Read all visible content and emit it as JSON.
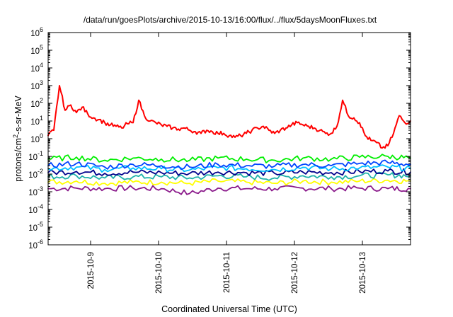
{
  "chart_data": {
    "type": "line",
    "title": "/data/run/goesPlots/archive/2015-10-13/16:00/flux/../flux/5daysMoonFluxes.txt",
    "xlabel": "Coordinated Universal Time (UTC)",
    "ylabel": "protons/cm²-s-sr-MeV",
    "ylabel_base": "protons/cm",
    "ylabel_sup": "2",
    "ylabel_rest": "-s-sr-MeV",
    "yscale": "log",
    "ylim": [
      1e-06,
      1000000.0
    ],
    "xlim": [
      "2015-10-08T09:00",
      "2015-10-13T17:00"
    ],
    "grid": false,
    "legend": "none",
    "x_ticks": [
      {
        "label": "2015-10-9",
        "at": "2015-10-09T00:00"
      },
      {
        "label": "2015-10-10",
        "at": "2015-10-10T00:00"
      },
      {
        "label": "2015-10-11",
        "at": "2015-10-11T00:00"
      },
      {
        "label": "2015-10-12",
        "at": "2015-10-12T00:00"
      },
      {
        "label": "2015-10-13",
        "at": "2015-10-13T00:00"
      }
    ],
    "y_ticks": [
      {
        "base": "10",
        "exp": "-6",
        "value": 1e-06
      },
      {
        "base": "10",
        "exp": "-5",
        "value": 1e-05
      },
      {
        "base": "10",
        "exp": "-4",
        "value": 0.0001
      },
      {
        "base": "10",
        "exp": "-3",
        "value": 0.001
      },
      {
        "base": "10",
        "exp": "-2",
        "value": 0.01
      },
      {
        "base": "10",
        "exp": "-1",
        "value": 0.1
      },
      {
        "base": "10",
        "exp": "0",
        "value": 1
      },
      {
        "base": "10",
        "exp": "1",
        "value": 10
      },
      {
        "base": "10",
        "exp": "2",
        "value": 100
      },
      {
        "base": "10",
        "exp": "3",
        "value": 1000
      },
      {
        "base": "10",
        "exp": "4",
        "value": 10000
      },
      {
        "base": "10",
        "exp": "5",
        "value": 100000
      },
      {
        "base": "10",
        "exp": "6",
        "value": 1000000
      }
    ],
    "series": [
      {
        "color": "#ff0000",
        "x": [
          "2015-10-08T09:00",
          "2015-10-08T11:00",
          "2015-10-08T13:00",
          "2015-10-08T15:00",
          "2015-10-08T17:00",
          "2015-10-08T19:00",
          "2015-10-08T21:00",
          "2015-10-08T23:00",
          "2015-10-09T01:00",
          "2015-10-09T03:00",
          "2015-10-09T05:00",
          "2015-10-09T07:00",
          "2015-10-09T09:00",
          "2015-10-09T11:00",
          "2015-10-09T13:00",
          "2015-10-09T15:00",
          "2015-10-09T17:00",
          "2015-10-09T19:00",
          "2015-10-09T21:00",
          "2015-10-09T23:00",
          "2015-10-10T01:00",
          "2015-10-10T03:00",
          "2015-10-10T05:00",
          "2015-10-10T07:00",
          "2015-10-10T09:00",
          "2015-10-10T11:00",
          "2015-10-10T13:00",
          "2015-10-10T15:00",
          "2015-10-10T17:00",
          "2015-10-10T19:00",
          "2015-10-10T21:00",
          "2015-10-10T23:00",
          "2015-10-11T01:00",
          "2015-10-11T03:00",
          "2015-10-11T05:00",
          "2015-10-11T07:00",
          "2015-10-11T09:00",
          "2015-10-11T11:00",
          "2015-10-11T13:00",
          "2015-10-11T15:00",
          "2015-10-11T17:00",
          "2015-10-11T19:00",
          "2015-10-11T21:00",
          "2015-10-11T23:00",
          "2015-10-12T01:00",
          "2015-10-12T03:00",
          "2015-10-12T05:00",
          "2015-10-12T07:00",
          "2015-10-12T09:00",
          "2015-10-12T11:00",
          "2015-10-12T13:00",
          "2015-10-12T15:00",
          "2015-10-12T17:00",
          "2015-10-12T19:00",
          "2015-10-12T21:00",
          "2015-10-12T23:00",
          "2015-10-13T01:00",
          "2015-10-13T03:00",
          "2015-10-13T05:00",
          "2015-10-13T07:00",
          "2015-10-13T09:00",
          "2015-10-13T11:00",
          "2015-10-13T13:00",
          "2015-10-13T15:00",
          "2015-10-13T17:00"
        ],
        "values": [
          1.5,
          3,
          1000,
          40,
          80,
          30,
          60,
          25,
          15,
          12,
          8,
          6,
          5,
          4,
          7,
          8,
          150,
          20,
          10,
          8,
          6,
          5,
          4,
          3.5,
          4,
          3,
          2.5,
          2,
          3,
          2.5,
          2,
          2,
          1.5,
          1.2,
          1.5,
          2,
          3,
          4,
          5,
          3,
          2,
          3,
          4,
          6,
          8,
          6,
          5,
          4,
          3,
          2,
          2,
          5,
          150,
          20,
          15,
          8,
          1.5,
          0.8,
          0.6,
          0.3,
          0.4,
          2,
          20,
          8,
          10
        ]
      },
      {
        "color": "#00ee00",
        "x": [
          "2015-10-08T09:00",
          "2015-10-08T19:00",
          "2015-10-09T05:00",
          "2015-10-09T15:00",
          "2015-10-10T01:00",
          "2015-10-10T11:00",
          "2015-10-10T21:00",
          "2015-10-11T07:00",
          "2015-10-11T17:00",
          "2015-10-12T03:00",
          "2015-10-12T13:00",
          "2015-10-12T23:00",
          "2015-10-13T09:00",
          "2015-10-13T17:00"
        ],
        "values": [
          0.07,
          0.09,
          0.06,
          0.08,
          0.07,
          0.06,
          0.08,
          0.07,
          0.06,
          0.08,
          0.07,
          0.09,
          0.1,
          0.08
        ]
      },
      {
        "color": "#00bfff",
        "x": [
          "2015-10-08T09:00",
          "2015-10-08T19:00",
          "2015-10-09T05:00",
          "2015-10-09T15:00",
          "2015-10-10T01:00",
          "2015-10-10T11:00",
          "2015-10-10T21:00",
          "2015-10-11T07:00",
          "2015-10-11T17:00",
          "2015-10-12T03:00",
          "2015-10-12T13:00",
          "2015-10-12T23:00",
          "2015-10-13T09:00",
          "2015-10-13T17:00"
        ],
        "values": [
          0.02,
          0.025,
          0.018,
          0.022,
          0.02,
          0.017,
          0.023,
          0.02,
          0.018,
          0.024,
          0.02,
          0.022,
          0.025,
          0.02
        ]
      },
      {
        "color": "#0044ff",
        "x": [
          "2015-10-08T09:00",
          "2015-10-08T19:00",
          "2015-10-09T05:00",
          "2015-10-09T15:00",
          "2015-10-10T01:00",
          "2015-10-10T11:00",
          "2015-10-10T21:00",
          "2015-10-11T07:00",
          "2015-10-11T17:00",
          "2015-10-12T03:00",
          "2015-10-12T13:00",
          "2015-10-12T23:00",
          "2015-10-13T09:00",
          "2015-10-13T17:00"
        ],
        "values": [
          0.03,
          0.04,
          0.025,
          0.035,
          0.03,
          0.025,
          0.035,
          0.03,
          0.028,
          0.035,
          0.03,
          0.04,
          0.045,
          0.035
        ]
      },
      {
        "color": "#00008b",
        "x": [
          "2015-10-08T09:00",
          "2015-10-08T19:00",
          "2015-10-09T05:00",
          "2015-10-09T15:00",
          "2015-10-10T01:00",
          "2015-10-10T11:00",
          "2015-10-10T21:00",
          "2015-10-11T07:00",
          "2015-10-11T17:00",
          "2015-10-12T03:00",
          "2015-10-12T13:00",
          "2015-10-12T23:00",
          "2015-10-13T09:00",
          "2015-10-13T17:00"
        ],
        "values": [
          0.012,
          0.014,
          0.011,
          0.013,
          0.012,
          0.011,
          0.013,
          0.012,
          0.011,
          0.013,
          0.012,
          0.014,
          0.015,
          0.013
        ]
      },
      {
        "color": "#20b2aa",
        "x": [
          "2015-10-08T09:00",
          "2015-10-08T19:00",
          "2015-10-09T05:00",
          "2015-10-09T15:00",
          "2015-10-10T01:00",
          "2015-10-10T11:00",
          "2015-10-10T21:00",
          "2015-10-11T07:00",
          "2015-10-11T17:00",
          "2015-10-12T03:00",
          "2015-10-12T13:00",
          "2015-10-12T23:00",
          "2015-10-13T09:00",
          "2015-10-13T17:00"
        ],
        "values": [
          0.007,
          0.008,
          0.006,
          0.007,
          0.007,
          0.006,
          0.008,
          0.007,
          0.006,
          0.008,
          0.007,
          0.008,
          0.009,
          0.008
        ]
      },
      {
        "color": "#ffff00",
        "x": [
          "2015-10-08T09:00",
          "2015-10-08T19:00",
          "2015-10-09T05:00",
          "2015-10-09T15:00",
          "2015-10-10T01:00",
          "2015-10-10T11:00",
          "2015-10-10T21:00",
          "2015-10-11T07:00",
          "2015-10-11T17:00",
          "2015-10-12T03:00",
          "2015-10-12T13:00",
          "2015-10-12T23:00",
          "2015-10-13T09:00",
          "2015-10-13T17:00"
        ],
        "values": [
          0.0035,
          0.004,
          0.003,
          0.0035,
          0.0035,
          0.003,
          0.004,
          0.0035,
          0.003,
          0.004,
          0.0035,
          0.004,
          0.0045,
          0.004
        ]
      },
      {
        "color": "#8b1a8b",
        "x": [
          "2015-10-08T09:00",
          "2015-10-08T19:00",
          "2015-10-09T05:00",
          "2015-10-09T15:00",
          "2015-10-10T01:00",
          "2015-10-10T11:00",
          "2015-10-10T21:00",
          "2015-10-11T07:00",
          "2015-10-11T17:00",
          "2015-10-12T03:00",
          "2015-10-12T13:00",
          "2015-10-12T23:00",
          "2015-10-13T09:00",
          "2015-10-13T17:00"
        ],
        "values": [
          0.0015,
          0.0016,
          0.0015,
          0.0016,
          0.0015,
          0.0008,
          0.0016,
          0.0015,
          0.0015,
          0.0016,
          0.0015,
          0.0016,
          0.0015,
          0.0015
        ]
      }
    ]
  }
}
